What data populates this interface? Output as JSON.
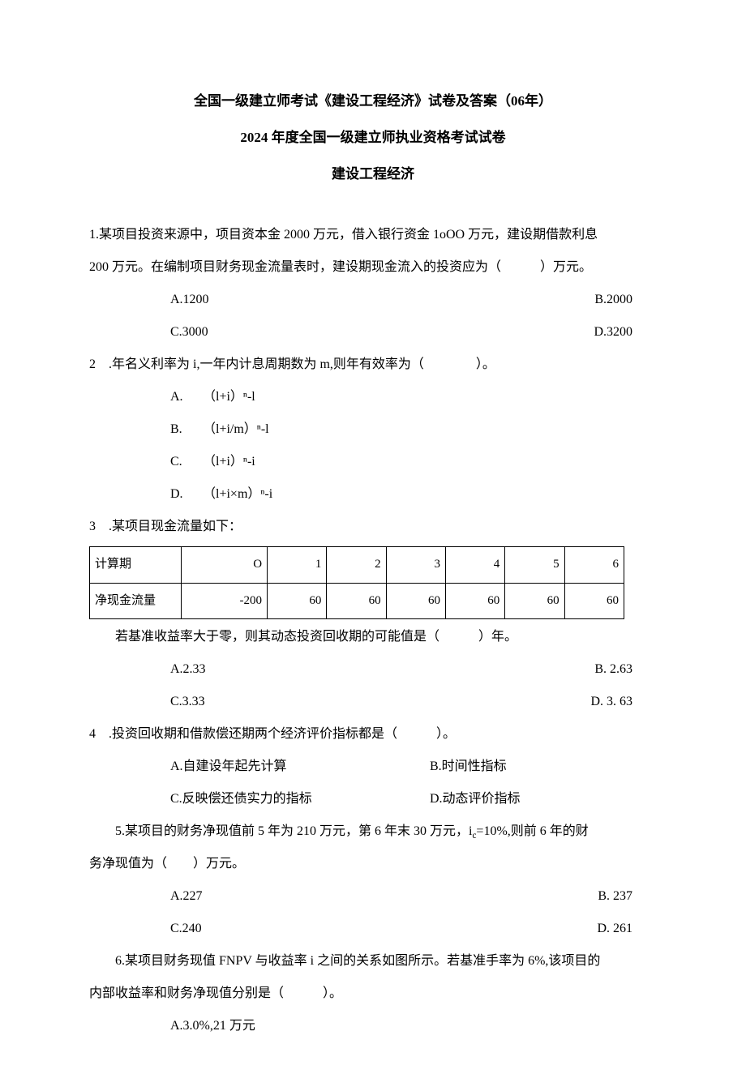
{
  "header": {
    "line1": "全国一级建立师考试《建设工程经济》试卷及答案（06年）",
    "line2": "2024 年度全国一级建立师执业资格考试试卷",
    "subject": "建设工程经济"
  },
  "q1": {
    "text_a": "1.某项目投资来源中，项目资本金 2000 万元，借入银行资金 1oOO 万元，建设期借款利息",
    "text_b": "200 万元。在编制项目财务现金流量表时，建设期现金流入的投资应为（　　　）万元。",
    "opts": {
      "A": "A.1200",
      "B": "B.2000",
      "C": "C.3000",
      "D": "D.3200"
    }
  },
  "q2": {
    "text": "2　.年名义利率为 i,一年内计息周期数为 m,则年有效率为（　　　　）。",
    "opts": {
      "A": "（l+i）ⁿ-l",
      "B": "（l+i/m）ⁿ-l",
      "C": "（l+i）ⁿ-i",
      "D": "（l+i×m）ⁿ-i"
    },
    "letters": {
      "A": "A.",
      "B": "B.",
      "C": "C.",
      "D": "D."
    }
  },
  "q3": {
    "text": "3　.某项目现金流量如下：",
    "table": {
      "headers": [
        "计算期",
        "O",
        "1",
        "2",
        "3",
        "4",
        "5",
        "6"
      ],
      "row": [
        "净现金流量",
        "-200",
        "60",
        "60",
        "60",
        "60",
        "60",
        "60"
      ]
    },
    "after": "若基准收益率大于零，则其动态投资回收期的可能值是（　　　）年。",
    "opts": {
      "A": "A.2.33",
      "B": "B. 2.63",
      "C": "C.3.33",
      "D": "D. 3. 63"
    }
  },
  "q4": {
    "text": "4　.投资回收期和借款偿还期两个经济评价指标都是（　　　）。",
    "opts": {
      "A": "A.自建设年起先计算",
      "B": "B.时间性指标",
      "C": "C.反映偿还债实力的指标",
      "D": "D.动态评价指标"
    }
  },
  "q5": {
    "text_a": "5.某项目的财务净现值前 5 年为 210 万元，第 6 年末 30 万元，i",
    "text_sub": "c",
    "text_b": "=10%,则前 6 年的财",
    "text_c": "务净现值为（　　）万元。",
    "opts": {
      "A": "A.227",
      "B": "B. 237",
      "C": "C.240",
      "D": "D. 261"
    }
  },
  "q6": {
    "text_a": "6.某项目财务现值 FNPV 与收益率 i 之间的关系如图所示。若基准手率为 6%,该项目的",
    "text_b": "内部收益率和财务净现值分别是（　　　）。",
    "optA": "A.3.0%,21 万元"
  }
}
